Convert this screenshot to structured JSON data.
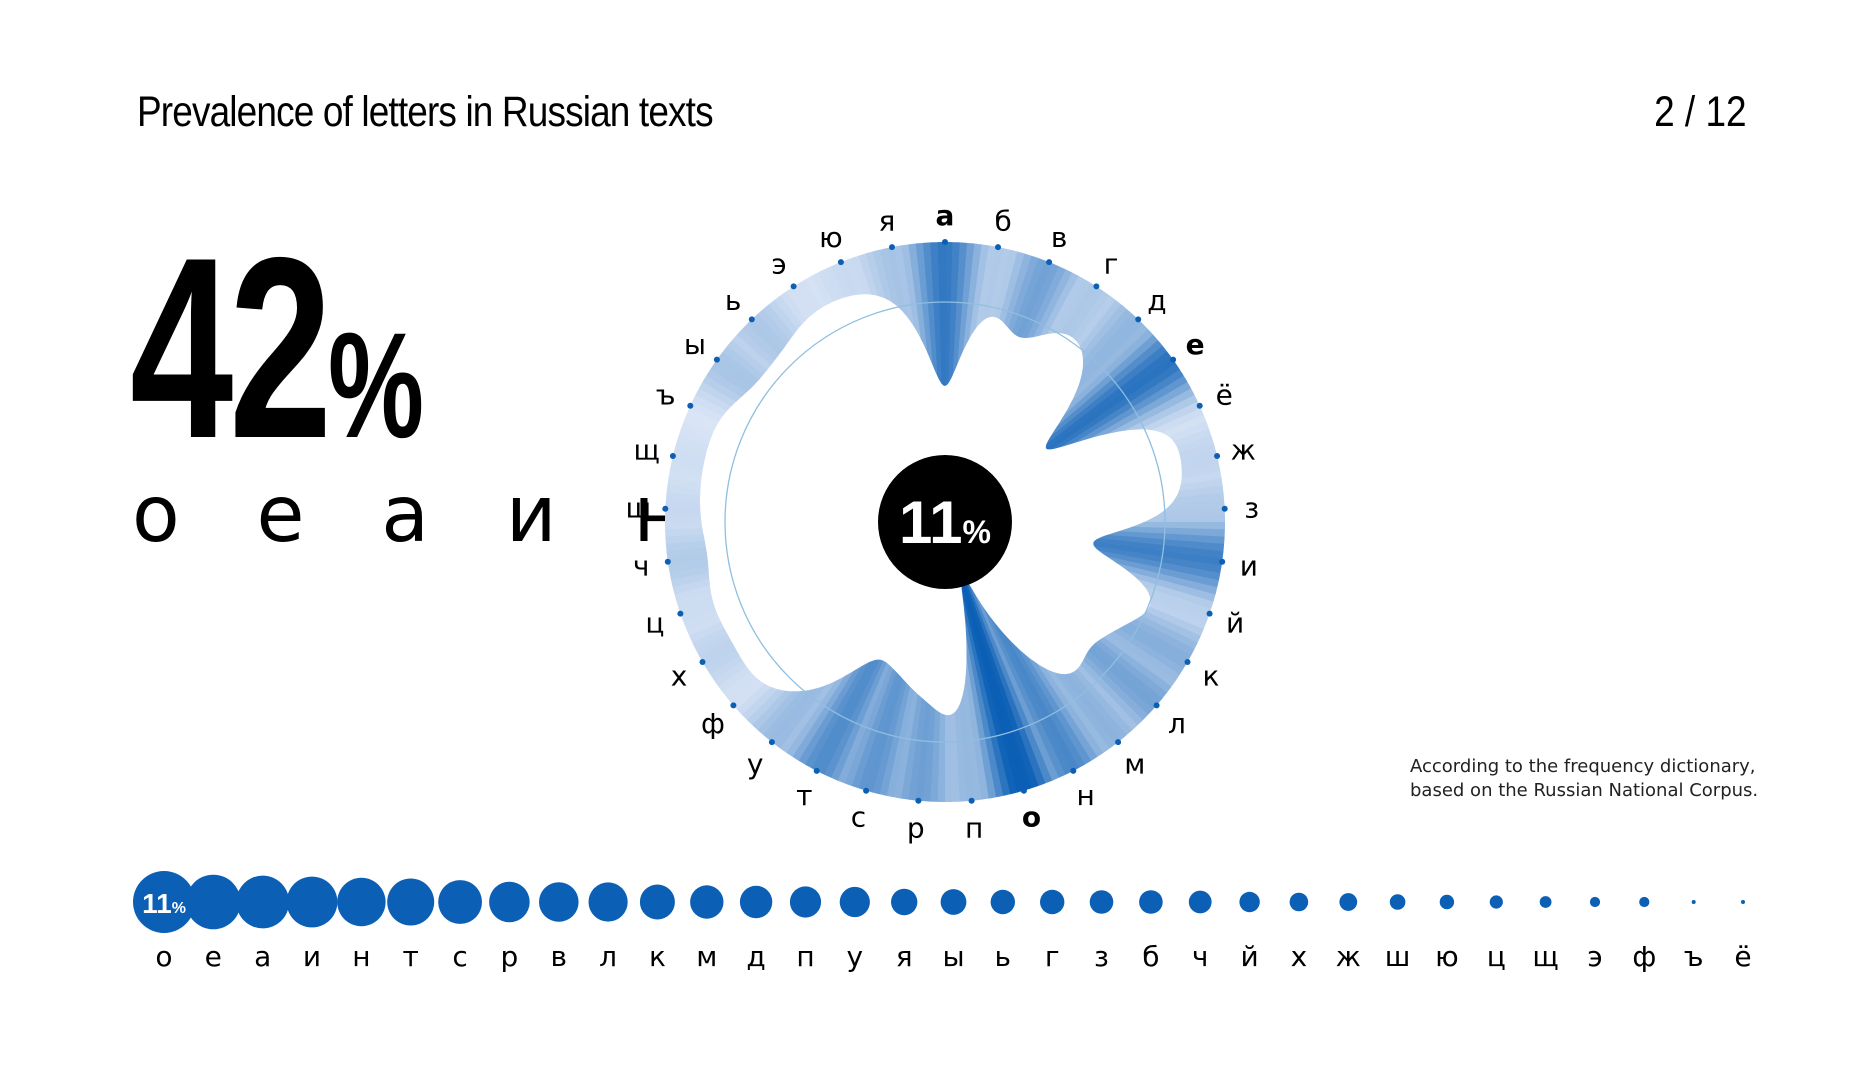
{
  "title": "Prevalence of letters in Russian texts",
  "pager": "2 / 12",
  "headline": {
    "value": "42",
    "unit": "%",
    "letters": "о е а и н"
  },
  "center_label": {
    "value": "11",
    "unit": "%"
  },
  "source": {
    "line1": "According to the frequency dictionary,",
    "line2": "based on the Russian National Corpus."
  },
  "colors": {
    "accent": "#0b5fb5",
    "light": "#dfe8f7",
    "text": "#000000"
  },
  "chart_data": [
    {
      "type": "radial",
      "alphabet": [
        "а",
        "б",
        "в",
        "г",
        "д",
        "е",
        "ё",
        "ж",
        "з",
        "и",
        "й",
        "к",
        "л",
        "м",
        "н",
        "о",
        "п",
        "р",
        "с",
        "т",
        "у",
        "ф",
        "х",
        "ц",
        "ч",
        "ш",
        "щ",
        "ъ",
        "ы",
        "ь",
        "э",
        "ю",
        "я"
      ],
      "highlighted": [
        "а",
        "е",
        "о"
      ],
      "values": {
        "а": 8.0,
        "б": 1.6,
        "в": 4.5,
        "г": 1.7,
        "д": 3.0,
        "е": 8.5,
        "ё": 0.04,
        "ж": 0.9,
        "з": 1.6,
        "и": 7.4,
        "й": 1.2,
        "к": 3.5,
        "л": 4.4,
        "м": 3.2,
        "н": 6.7,
        "о": 11.0,
        "п": 2.8,
        "р": 4.7,
        "с": 5.5,
        "т": 6.3,
        "у": 2.6,
        "ф": 0.3,
        "х": 1.0,
        "ц": 0.5,
        "ч": 1.5,
        "ш": 0.7,
        "щ": 0.4,
        "ъ": 0.04,
        "ы": 1.9,
        "ь": 1.7,
        "э": 0.3,
        "ю": 0.6,
        "я": 2.0
      }
    },
    {
      "type": "scatter",
      "categories": [
        "о",
        "е",
        "а",
        "и",
        "н",
        "т",
        "с",
        "р",
        "в",
        "л",
        "к",
        "м",
        "д",
        "п",
        "у",
        "я",
        "ы",
        "ь",
        "г",
        "з",
        "б",
        "ч",
        "й",
        "х",
        "ж",
        "ш",
        "ю",
        "ц",
        "щ",
        "э",
        "ф",
        "ъ",
        "ё"
      ],
      "values": [
        11.0,
        8.5,
        8.0,
        7.4,
        6.7,
        6.3,
        5.5,
        4.7,
        4.5,
        4.4,
        3.5,
        3.2,
        3.0,
        2.8,
        2.6,
        2.0,
        1.9,
        1.7,
        1.7,
        1.6,
        1.6,
        1.5,
        1.2,
        1.0,
        0.9,
        0.7,
        0.6,
        0.5,
        0.4,
        0.3,
        0.3,
        0.04,
        0.04
      ],
      "first_label": {
        "value": "11",
        "unit": "%"
      }
    }
  ]
}
